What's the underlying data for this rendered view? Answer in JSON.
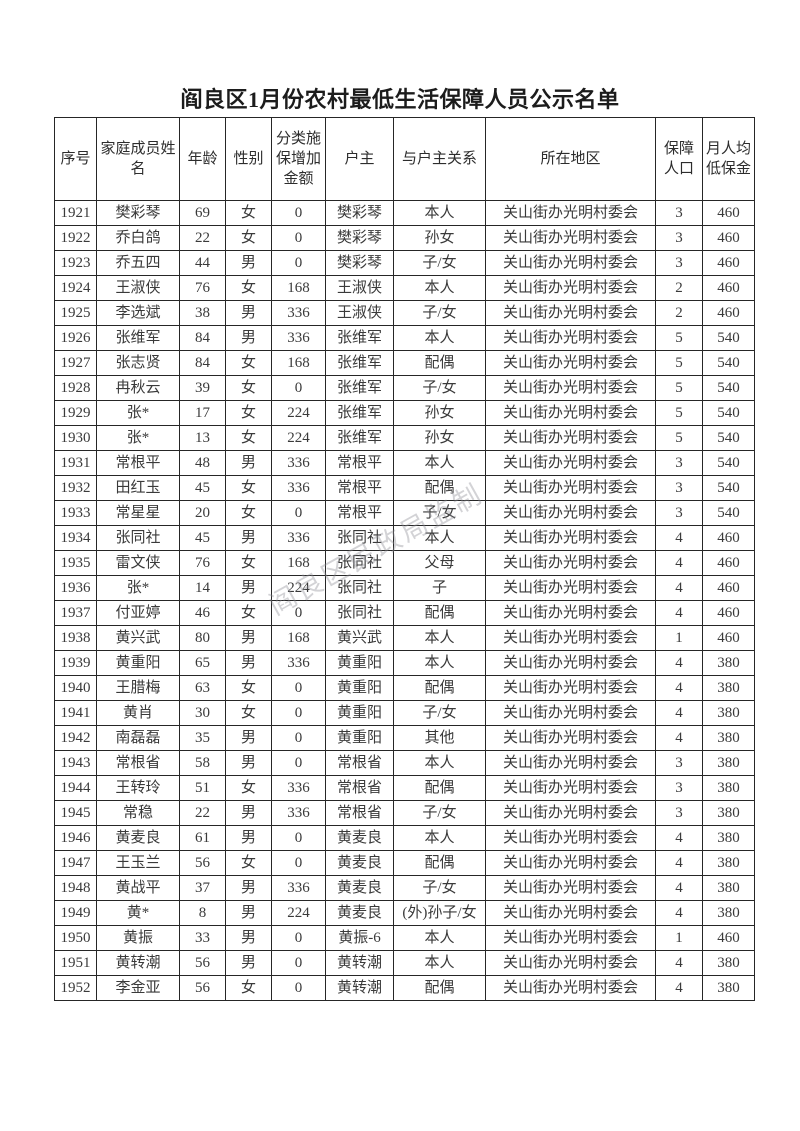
{
  "page": {
    "title": "阎良区1月份农村最低生活保障人员公示名单"
  },
  "watermark": {
    "text": "阎良区民政局监制"
  },
  "table": {
    "headers": [
      "序号",
      "家庭成员姓名",
      "年龄",
      "性别",
      "分类施保增加金额",
      "户主",
      "与户主关系",
      "所在地区",
      "保障人口",
      "月人均低保金"
    ],
    "rows": [
      [
        "1921",
        "樊彩琴",
        "69",
        "女",
        "0",
        "樊彩琴",
        "本人",
        "关山街办光明村委会",
        "3",
        "460"
      ],
      [
        "1922",
        "乔白鸽",
        "22",
        "女",
        "0",
        "樊彩琴",
        "孙女",
        "关山街办光明村委会",
        "3",
        "460"
      ],
      [
        "1923",
        "乔五四",
        "44",
        "男",
        "0",
        "樊彩琴",
        "子/女",
        "关山街办光明村委会",
        "3",
        "460"
      ],
      [
        "1924",
        "王淑侠",
        "76",
        "女",
        "168",
        "王淑侠",
        "本人",
        "关山街办光明村委会",
        "2",
        "460"
      ],
      [
        "1925",
        "李选斌",
        "38",
        "男",
        "336",
        "王淑侠",
        "子/女",
        "关山街办光明村委会",
        "2",
        "460"
      ],
      [
        "1926",
        "张维军",
        "84",
        "男",
        "336",
        "张维军",
        "本人",
        "关山街办光明村委会",
        "5",
        "540"
      ],
      [
        "1927",
        "张志贤",
        "84",
        "女",
        "168",
        "张维军",
        "配偶",
        "关山街办光明村委会",
        "5",
        "540"
      ],
      [
        "1928",
        "冉秋云",
        "39",
        "女",
        "0",
        "张维军",
        "子/女",
        "关山街办光明村委会",
        "5",
        "540"
      ],
      [
        "1929",
        "张*",
        "17",
        "女",
        "224",
        "张维军",
        "孙女",
        "关山街办光明村委会",
        "5",
        "540"
      ],
      [
        "1930",
        "张*",
        "13",
        "女",
        "224",
        "张维军",
        "孙女",
        "关山街办光明村委会",
        "5",
        "540"
      ],
      [
        "1931",
        "常根平",
        "48",
        "男",
        "336",
        "常根平",
        "本人",
        "关山街办光明村委会",
        "3",
        "540"
      ],
      [
        "1932",
        "田红玉",
        "45",
        "女",
        "336",
        "常根平",
        "配偶",
        "关山街办光明村委会",
        "3",
        "540"
      ],
      [
        "1933",
        "常星星",
        "20",
        "女",
        "0",
        "常根平",
        "子/女",
        "关山街办光明村委会",
        "3",
        "540"
      ],
      [
        "1934",
        "张同社",
        "45",
        "男",
        "336",
        "张同社",
        "本人",
        "关山街办光明村委会",
        "4",
        "460"
      ],
      [
        "1935",
        "雷文侠",
        "76",
        "女",
        "168",
        "张同社",
        "父母",
        "关山街办光明村委会",
        "4",
        "460"
      ],
      [
        "1936",
        "张*",
        "14",
        "男",
        "224",
        "张同社",
        "子",
        "关山街办光明村委会",
        "4",
        "460"
      ],
      [
        "1937",
        "付亚婷",
        "46",
        "女",
        "0",
        "张同社",
        "配偶",
        "关山街办光明村委会",
        "4",
        "460"
      ],
      [
        "1938",
        "黄兴武",
        "80",
        "男",
        "168",
        "黄兴武",
        "本人",
        "关山街办光明村委会",
        "1",
        "460"
      ],
      [
        "1939",
        "黄重阳",
        "65",
        "男",
        "336",
        "黄重阳",
        "本人",
        "关山街办光明村委会",
        "4",
        "380"
      ],
      [
        "1940",
        "王腊梅",
        "63",
        "女",
        "0",
        "黄重阳",
        "配偶",
        "关山街办光明村委会",
        "4",
        "380"
      ],
      [
        "1941",
        "黄肖",
        "30",
        "女",
        "0",
        "黄重阳",
        "子/女",
        "关山街办光明村委会",
        "4",
        "380"
      ],
      [
        "1942",
        "南磊磊",
        "35",
        "男",
        "0",
        "黄重阳",
        "其他",
        "关山街办光明村委会",
        "4",
        "380"
      ],
      [
        "1943",
        "常根省",
        "58",
        "男",
        "0",
        "常根省",
        "本人",
        "关山街办光明村委会",
        "3",
        "380"
      ],
      [
        "1944",
        "王转玲",
        "51",
        "女",
        "336",
        "常根省",
        "配偶",
        "关山街办光明村委会",
        "3",
        "380"
      ],
      [
        "1945",
        "常稳",
        "22",
        "男",
        "336",
        "常根省",
        "子/女",
        "关山街办光明村委会",
        "3",
        "380"
      ],
      [
        "1946",
        "黄麦良",
        "61",
        "男",
        "0",
        "黄麦良",
        "本人",
        "关山街办光明村委会",
        "4",
        "380"
      ],
      [
        "1947",
        "王玉兰",
        "56",
        "女",
        "0",
        "黄麦良",
        "配偶",
        "关山街办光明村委会",
        "4",
        "380"
      ],
      [
        "1948",
        "黄战平",
        "37",
        "男",
        "336",
        "黄麦良",
        "子/女",
        "关山街办光明村委会",
        "4",
        "380"
      ],
      [
        "1949",
        "黄*",
        "8",
        "男",
        "224",
        "黄麦良",
        "(外)孙子/女",
        "关山街办光明村委会",
        "4",
        "380"
      ],
      [
        "1950",
        "黄振",
        "33",
        "男",
        "0",
        "黄振-6",
        "本人",
        "关山街办光明村委会",
        "1",
        "460"
      ],
      [
        "1951",
        "黄转潮",
        "56",
        "男",
        "0",
        "黄转潮",
        "本人",
        "关山街办光明村委会",
        "4",
        "380"
      ],
      [
        "1952",
        "李金亚",
        "56",
        "女",
        "0",
        "黄转潮",
        "配偶",
        "关山街办光明村委会",
        "4",
        "380"
      ]
    ]
  }
}
